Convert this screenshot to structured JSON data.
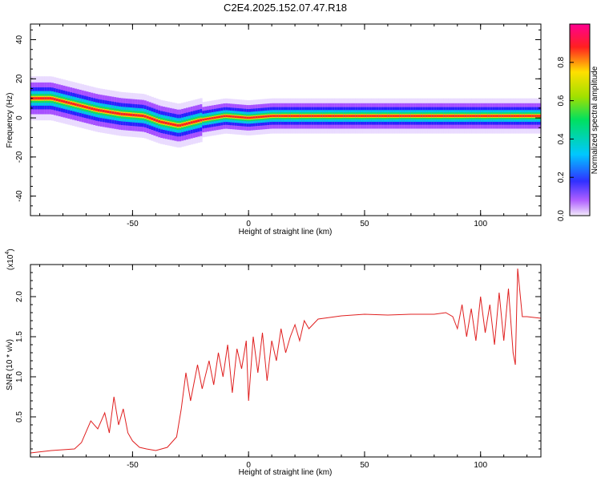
{
  "title": "C2E4.2025.152.07.47.R18",
  "colorbar": {
    "label": "Normalized spectral amplitude",
    "ticks": [
      "0.0",
      "0.2",
      "0.4",
      "0.6",
      "0.8"
    ],
    "tick_values": [
      0.0,
      0.2,
      0.4,
      0.6,
      0.8
    ]
  },
  "chart_data": [
    {
      "type": "heatmap",
      "title": "C2E4.2025.152.07.47.R18",
      "xlabel": "Height of straight line (km)",
      "ylabel": "Frequency (Hz)",
      "xlim": [
        -94,
        126
      ],
      "ylim": [
        -50,
        48
      ],
      "xticks": [
        -50,
        0,
        50,
        100
      ],
      "yticks": [
        -40,
        -20,
        0,
        20,
        40
      ],
      "xtick_labels": [
        "-50",
        "0",
        "50",
        "100"
      ],
      "ytick_labels": [
        "-40",
        "-20",
        "0",
        "20",
        "40"
      ],
      "colorscale": "rainbow (purple=0 to magenta=1)",
      "ridge": {
        "x": [
          -94,
          -85,
          -75,
          -65,
          -55,
          -45,
          -38,
          -30,
          -20,
          -10,
          0,
          10,
          20,
          30,
          40,
          50,
          60,
          70,
          80,
          90,
          100,
          110,
          126
        ],
        "y": [
          10,
          10,
          7,
          4,
          2,
          1,
          -2,
          -4,
          -1,
          1,
          0,
          1,
          1,
          1,
          1,
          1,
          1,
          1,
          1,
          1,
          1,
          1,
          1
        ]
      }
    },
    {
      "type": "line",
      "xlabel": "Height of straight line (km)",
      "ylabel": "SNR (10 * v/v)",
      "scale_label": "(x10",
      "scale_exp": "4",
      "xlim": [
        -94,
        126
      ],
      "ylim": [
        0,
        2.4
      ],
      "xticks": [
        -50,
        0,
        50,
        100
      ],
      "yticks": [
        0.5,
        1.0,
        1.5,
        2.0
      ],
      "xtick_labels": [
        "-50",
        "0",
        "50",
        "100"
      ],
      "ytick_labels": [
        "0.5",
        "1.0",
        "1.5",
        "2.0"
      ],
      "series": [
        {
          "color": "#e02020",
          "x": [
            -94,
            -85,
            -75,
            -72,
            -68,
            -65,
            -62,
            -60,
            -58,
            -56,
            -54,
            -52,
            -50,
            -47,
            -44,
            -40,
            -35,
            -31,
            -29,
            -27,
            -25,
            -22,
            -20,
            -17,
            -15,
            -13,
            -11,
            -9,
            -7,
            -5,
            -3,
            -1,
            0,
            2,
            4,
            6,
            8,
            10,
            12,
            14,
            16,
            18,
            20,
            22,
            24,
            26,
            30,
            40,
            50,
            60,
            70,
            80,
            85,
            88,
            90,
            92,
            94,
            96,
            98,
            100,
            102,
            104,
            106,
            108,
            110,
            112,
            114,
            115,
            116,
            118,
            120,
            126
          ],
          "y": [
            0.05,
            0.08,
            0.1,
            0.18,
            0.45,
            0.35,
            0.55,
            0.3,
            0.75,
            0.4,
            0.6,
            0.3,
            0.2,
            0.12,
            0.1,
            0.08,
            0.12,
            0.25,
            0.6,
            1.05,
            0.7,
            1.15,
            0.85,
            1.2,
            0.9,
            1.3,
            1.0,
            1.4,
            0.8,
            1.35,
            1.1,
            1.45,
            0.7,
            1.5,
            1.05,
            1.55,
            0.95,
            1.45,
            1.2,
            1.6,
            1.3,
            1.5,
            1.65,
            1.45,
            1.7,
            1.6,
            1.72,
            1.76,
            1.78,
            1.77,
            1.78,
            1.78,
            1.8,
            1.75,
            1.6,
            1.9,
            1.5,
            1.85,
            1.45,
            2.0,
            1.55,
            1.9,
            1.4,
            2.05,
            1.45,
            2.1,
            1.3,
            1.15,
            2.35,
            1.75,
            1.75,
            1.73
          ]
        }
      ]
    }
  ]
}
